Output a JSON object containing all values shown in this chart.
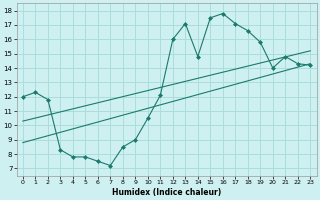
{
  "xlabel": "Humidex (Indice chaleur)",
  "bg_color": "#cff0f0",
  "grid_color": "#aadddd",
  "line_color": "#1a7a6e",
  "xlim": [
    -0.5,
    23.5
  ],
  "ylim": [
    6.5,
    18.5
  ],
  "xticks": [
    0,
    1,
    2,
    3,
    4,
    5,
    6,
    7,
    8,
    9,
    10,
    11,
    12,
    13,
    14,
    15,
    16,
    17,
    18,
    19,
    20,
    21,
    22,
    23
  ],
  "yticks": [
    7,
    8,
    9,
    10,
    11,
    12,
    13,
    14,
    15,
    16,
    17,
    18
  ],
  "series1_x": [
    0,
    1,
    2,
    3,
    4,
    5,
    6,
    7,
    8,
    9,
    10,
    11,
    12,
    13,
    14,
    15,
    16,
    17,
    18,
    19,
    20,
    21,
    22,
    23
  ],
  "series1_y": [
    12.0,
    12.3,
    11.8,
    8.3,
    7.8,
    7.8,
    7.5,
    7.2,
    8.5,
    9.0,
    10.5,
    12.1,
    16.0,
    17.1,
    14.8,
    17.5,
    17.8,
    17.1,
    16.6,
    15.8,
    14.0,
    14.8,
    14.3,
    14.2
  ],
  "series2_x": [
    0,
    23
  ],
  "series2_y": [
    8.8,
    14.3
  ],
  "series3_x": [
    0,
    23
  ],
  "series3_y": [
    10.3,
    15.2
  ]
}
